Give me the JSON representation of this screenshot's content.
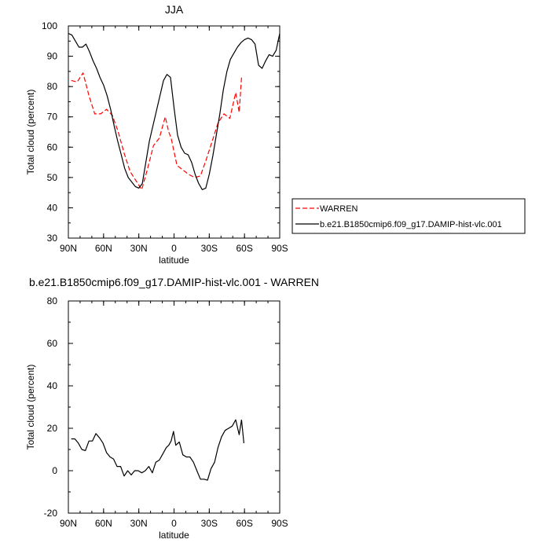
{
  "chart_data": [
    {
      "type": "line",
      "title": "JJA",
      "xlabel": "latitude",
      "ylabel": "Total cloud (percent)",
      "xlim": [
        -90,
        90
      ],
      "ylim": [
        30,
        100
      ],
      "x_ticks": [
        -90,
        -60,
        -30,
        0,
        30,
        60,
        90
      ],
      "x_tick_labels": [
        "90N",
        "60N",
        "30N",
        "0",
        "30S",
        "60S",
        "90S"
      ],
      "y_ticks": [
        30,
        40,
        50,
        60,
        70,
        80,
        90,
        100
      ],
      "y_tick_labels": [
        "30",
        "40",
        "50",
        "60",
        "70",
        "80",
        "90",
        "100"
      ],
      "legend_position": "right, outside plot",
      "series": [
        {
          "name": "WARREN",
          "color": "#ff0000",
          "dash": "dashed",
          "x": [
            -87.5,
            -82.5,
            -77.5,
            -72.5,
            -67.5,
            -62.5,
            -57.5,
            -52.5,
            -47.5,
            -42.5,
            -37.5,
            -32.5,
            -27.5,
            -22.5,
            -17.5,
            -12.5,
            -7.5,
            -4.5,
            -2.5,
            2.5,
            7.5,
            12.5,
            17.5,
            22.5,
            27.5,
            32.5,
            37.5,
            42.5,
            47.5,
            52.5,
            55.5,
            57.5
          ],
          "y": [
            82,
            81.5,
            84.5,
            77,
            71,
            71,
            72.5,
            70.5,
            65,
            58,
            52,
            49,
            46,
            53,
            60.5,
            63,
            70,
            65,
            63,
            54,
            52.5,
            51,
            50,
            50.5,
            56,
            62,
            68,
            71,
            69.5,
            78,
            71.5,
            83
          ]
        },
        {
          "name": "b.e21.B1850cmip6.f09_g17.DAMIP-hist-vlc.001",
          "color": "#000000",
          "dash": "solid",
          "x": [
            -90,
            -87,
            -84,
            -81,
            -78,
            -75,
            -72,
            -69,
            -66,
            -63,
            -60,
            -57,
            -54,
            -51,
            -48,
            -45,
            -42,
            -39,
            -36,
            -33,
            -30,
            -27,
            -24,
            -21,
            -18,
            -15,
            -12,
            -9,
            -6,
            -3,
            0,
            3,
            6,
            9,
            12,
            15,
            18,
            21,
            24,
            27,
            30,
            33,
            36,
            39,
            42,
            45,
            48,
            51,
            54,
            57,
            60,
            63,
            66,
            69,
            72,
            75,
            78,
            81,
            84,
            87,
            90
          ],
          "y": [
            97.5,
            97,
            95,
            93,
            93,
            94,
            91.5,
            88.5,
            86,
            83,
            80.5,
            77,
            72.5,
            67,
            62,
            57.5,
            53,
            50,
            48.5,
            47,
            46.5,
            48,
            55,
            62,
            67,
            72,
            77,
            82,
            84,
            83,
            73,
            64,
            60,
            58,
            57.5,
            55,
            51,
            48,
            46,
            46.5,
            51,
            57,
            64,
            71,
            79,
            85,
            89,
            91,
            93,
            94.5,
            95.5,
            96,
            95.5,
            94,
            87,
            86,
            88.5,
            90.5,
            90,
            92,
            97.5
          ]
        }
      ]
    },
    {
      "type": "line",
      "title": "b.e21.B1850cmip6.f09_g17.DAMIP-hist-vlc.001 - WARREN",
      "xlabel": "latitude",
      "ylabel": "Total cloud (percent)",
      "xlim": [
        -90,
        90
      ],
      "ylim": [
        -20,
        80
      ],
      "x_ticks": [
        -90,
        -60,
        -30,
        0,
        30,
        60,
        90
      ],
      "x_tick_labels": [
        "90N",
        "60N",
        "30N",
        "0",
        "30S",
        "60S",
        "90S"
      ],
      "y_ticks": [
        -20,
        0,
        20,
        40,
        60,
        80
      ],
      "y_tick_labels": [
        "-20",
        "0",
        "20",
        "40",
        "60",
        "80"
      ],
      "series": [
        {
          "color": "#000000",
          "dash": "solid",
          "x": [
            -87.5,
            -84.5,
            -81.5,
            -78.5,
            -75.5,
            -72.5,
            -69.5,
            -66.5,
            -63.5,
            -60.5,
            -57.5,
            -54.5,
            -51.5,
            -48.5,
            -45.5,
            -42.5,
            -39.5,
            -36.5,
            -33.5,
            -30.5,
            -27.5,
            -24.5,
            -21.5,
            -18.5,
            -15.5,
            -12.5,
            -9.5,
            -6.5,
            -4.5,
            -2.5,
            -0.5,
            1.5,
            4.5,
            7.5,
            10.5,
            13.5,
            16.5,
            19.5,
            22.5,
            25.5,
            28.5,
            31.5,
            34.5,
            37.5,
            40.5,
            43.5,
            46.5,
            49.5,
            52.5,
            55.5,
            57.5
          ],
          "y": [
            15,
            15,
            13,
            10,
            9.5,
            14,
            14,
            17.5,
            15.5,
            13,
            8.5,
            6.5,
            5.5,
            2,
            2,
            -2.5,
            0,
            -2,
            0,
            0,
            -1,
            0,
            2,
            -1,
            4,
            5,
            8,
            11,
            12,
            14,
            18.5,
            12,
            13.5,
            7.5,
            6.5,
            6.5,
            4,
            0,
            -4,
            -4,
            -4.5,
            1,
            4,
            11,
            16,
            19,
            20,
            21,
            24,
            17,
            24
          ]
        },
        {
          "color": "#000000",
          "dash": "solid",
          "x": [
            57.5,
            59.5
          ],
          "y": [
            24,
            13
          ]
        }
      ]
    }
  ]
}
